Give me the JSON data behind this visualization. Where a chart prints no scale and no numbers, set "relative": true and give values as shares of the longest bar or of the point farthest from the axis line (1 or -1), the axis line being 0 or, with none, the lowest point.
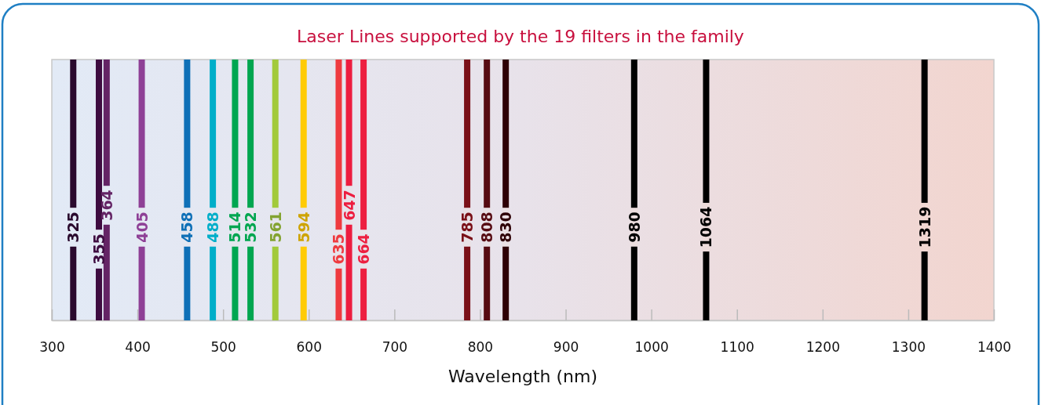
{
  "chart_data": {
    "type": "bar",
    "title": "Laser Lines supported by the 19 filters in the family",
    "xlabel": "Wavelength (nm)",
    "xlim": [
      300,
      1400
    ],
    "xticks": [
      300,
      400,
      500,
      600,
      700,
      800,
      900,
      1000,
      1100,
      1200,
      1300,
      1400
    ],
    "relative": true,
    "x": [
      325,
      355,
      364,
      405,
      458,
      488,
      514,
      532,
      561,
      594,
      635,
      647,
      664,
      785,
      808,
      830,
      980,
      1064,
      1319
    ],
    "values": [
      1,
      1,
      1,
      1,
      1,
      1,
      1,
      1,
      1,
      1,
      1,
      1,
      1,
      1,
      1,
      1,
      1,
      1,
      1
    ],
    "colors": [
      "#2a0a2e",
      "#3e0c40",
      "#642465",
      "#8e4096",
      "#0f70b7",
      "#00aec9",
      "#00a651",
      "#00a650",
      "#a2ca3b",
      "#ffcb05",
      "#ef3a3f",
      "#ed1c3f",
      "#ed1f40",
      "#7a1018",
      "#560b12",
      "#2e0005",
      "#000000",
      "#000000",
      "#000000"
    ],
    "annotations": [
      {
        "text": "325",
        "x": 325
      },
      {
        "text": "355",
        "x": 355
      },
      {
        "text": "364",
        "x": 364
      },
      {
        "text": "405",
        "x": 405
      },
      {
        "text": "458",
        "x": 458
      },
      {
        "text": "488",
        "x": 488
      },
      {
        "text": "514",
        "x": 514
      },
      {
        "text": "532",
        "x": 532
      },
      {
        "text": "561",
        "x": 561
      },
      {
        "text": "594",
        "x": 594
      },
      {
        "text": "635",
        "x": 635
      },
      {
        "text": "647",
        "x": 647
      },
      {
        "text": "664",
        "x": 664
      },
      {
        "text": "785",
        "x": 785
      },
      {
        "text": "808",
        "x": 808
      },
      {
        "text": "830",
        "x": 830
      },
      {
        "text": "980",
        "x": 980
      },
      {
        "text": "1064",
        "x": 1064
      },
      {
        "text": "1319",
        "x": 1319
      }
    ]
  }
}
